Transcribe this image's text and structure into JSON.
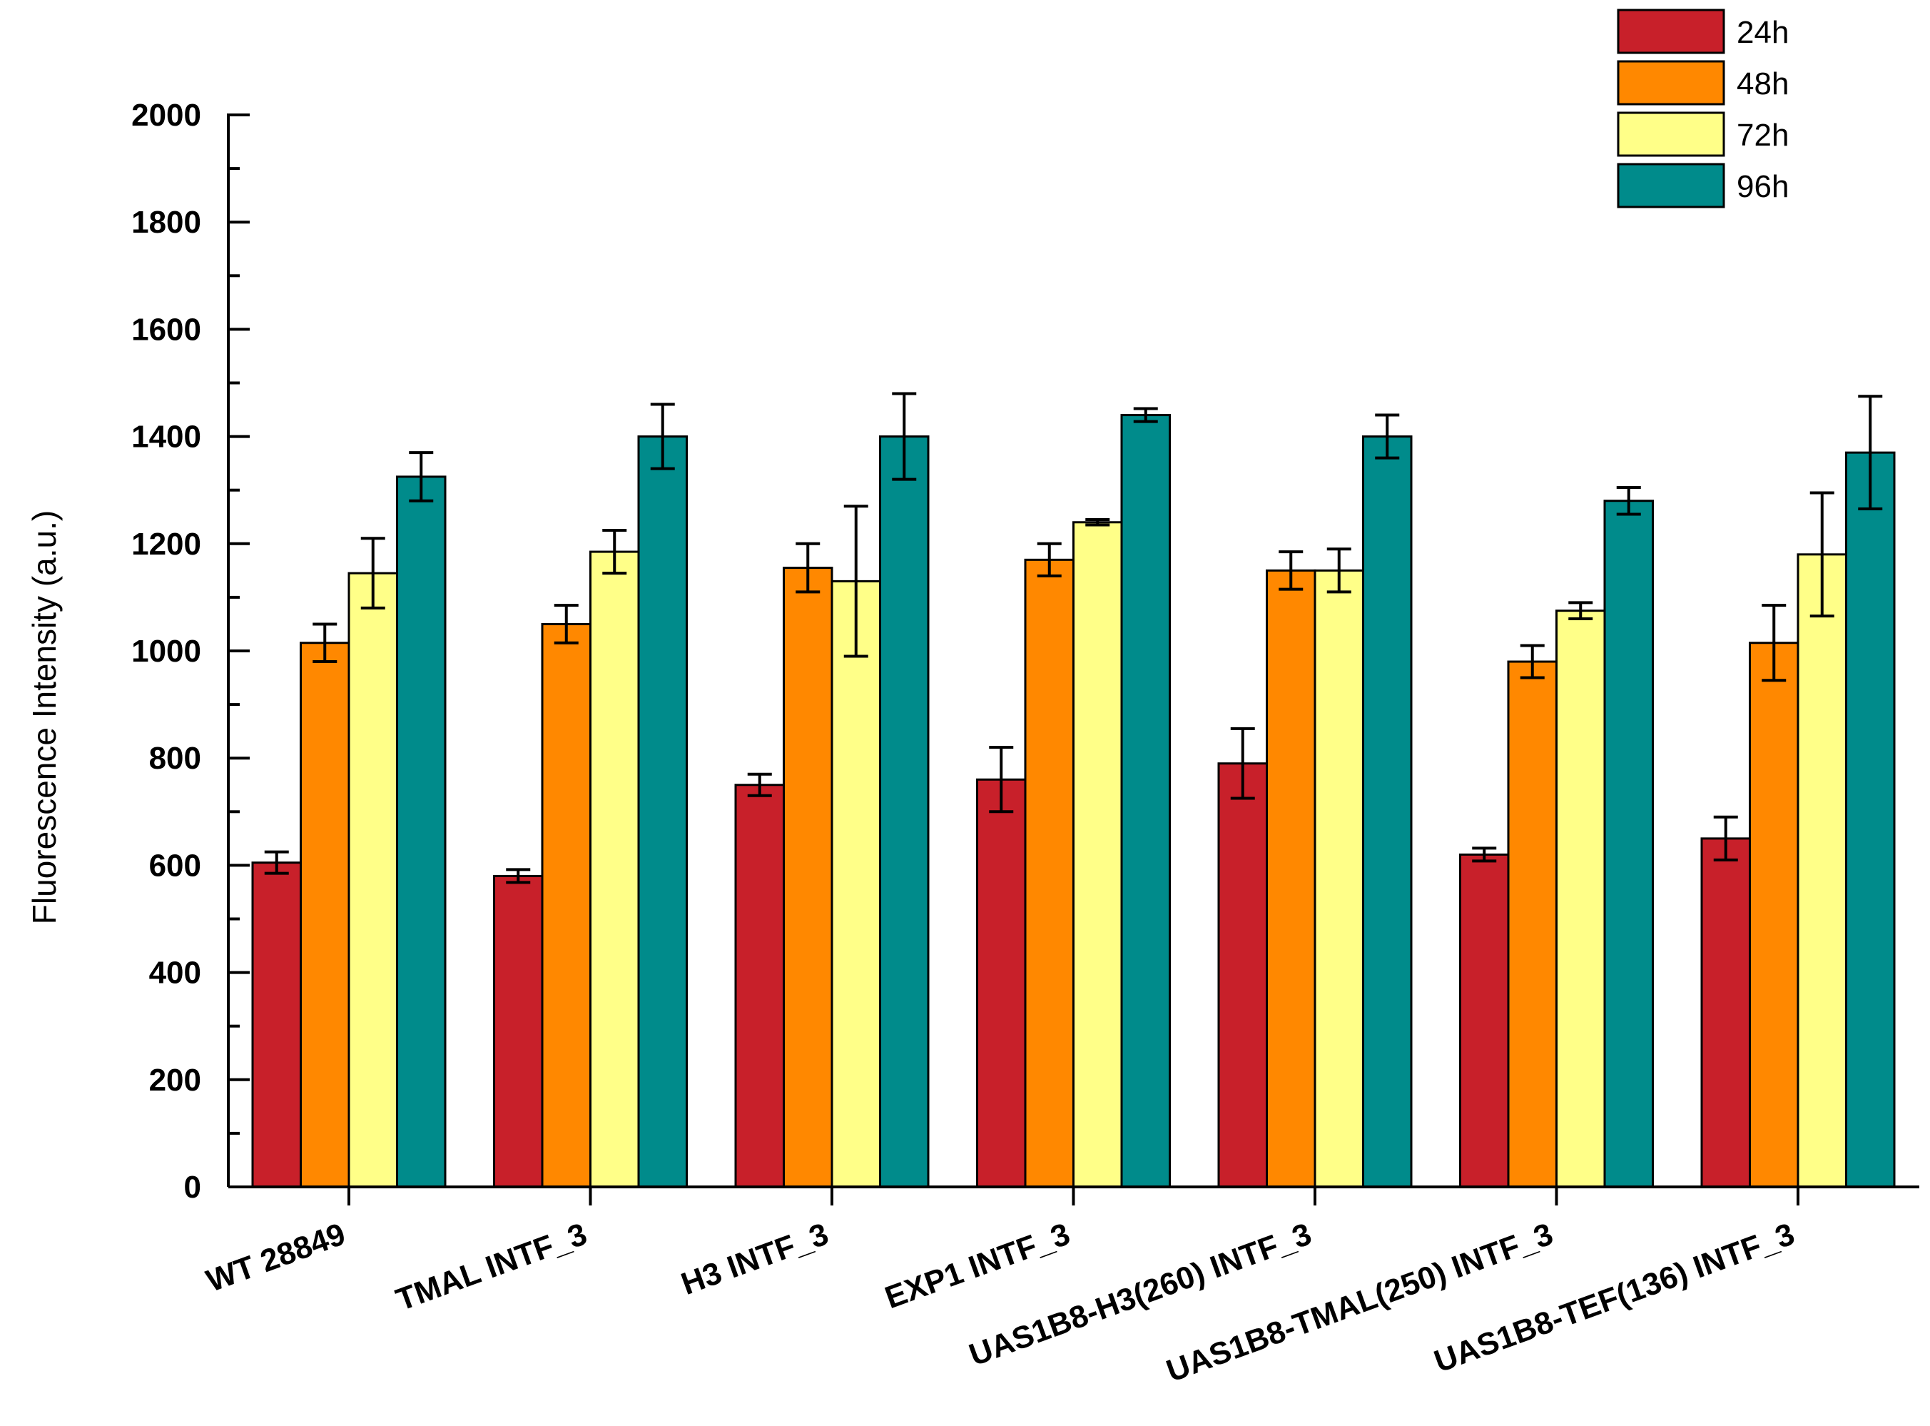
{
  "chart_data": {
    "type": "bar",
    "title": "",
    "xlabel": "",
    "ylabel": "Fluorescence Intensity (a.u.)",
    "ylim": [
      0,
      2000
    ],
    "yticks": [
      0,
      200,
      400,
      600,
      800,
      1000,
      1200,
      1400,
      1600,
      1800,
      2000
    ],
    "categories": [
      "WT 28849",
      "TMAL INTF_3",
      "H3 INTF_3",
      "EXP1 INTF_3",
      "UAS1B8-H3(260) INTF_3",
      "UAS1B8-TMAL(250) INTF_3",
      "UAS1B8-TEF(136) INTF_3"
    ],
    "series": [
      {
        "name": "24h",
        "color": "#c8202a",
        "values": [
          605,
          580,
          750,
          760,
          790,
          620,
          650
        ],
        "errors": [
          20,
          12,
          20,
          60,
          65,
          12,
          40
        ]
      },
      {
        "name": "48h",
        "color": "#ff8800",
        "values": [
          1015,
          1050,
          1155,
          1170,
          1150,
          980,
          1015
        ],
        "errors": [
          35,
          35,
          45,
          30,
          35,
          30,
          70
        ]
      },
      {
        "name": "72h",
        "color": "#ffff88",
        "values": [
          1145,
          1185,
          1130,
          1240,
          1150,
          1075,
          1180
        ],
        "errors": [
          65,
          40,
          140,
          5,
          40,
          15,
          115
        ]
      },
      {
        "name": "96h",
        "color": "#008b8b",
        "values": [
          1325,
          1400,
          1400,
          1440,
          1400,
          1280,
          1370
        ],
        "errors": [
          45,
          60,
          80,
          12,
          40,
          25,
          105
        ]
      }
    ],
    "legend_position": "top-right",
    "grid": false
  }
}
